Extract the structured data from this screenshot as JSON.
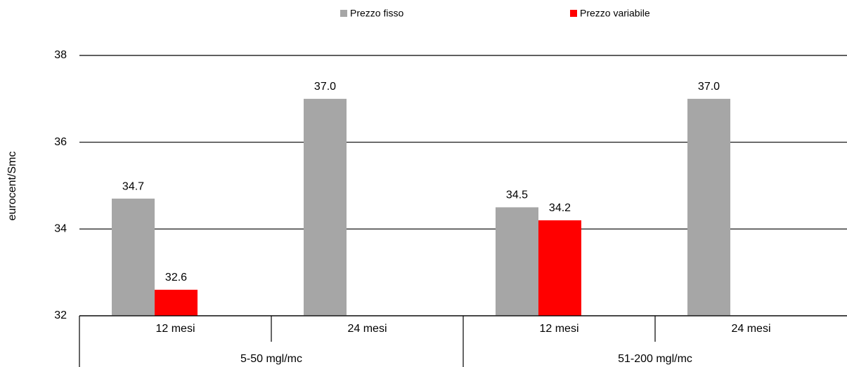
{
  "chart_data": {
    "type": "bar",
    "y_label": "eurocent/Smc",
    "categories": [
      "12 mesi",
      "24 mesi",
      "12 mesi",
      "24 mesi"
    ],
    "groups": [
      "5-50 mgl/mc",
      "51-200 mgl/mc"
    ],
    "series": [
      {
        "name": "Prezzo fisso",
        "color": "#a6a6a6",
        "values": [
          34.7,
          37.0,
          34.5,
          37.0
        ],
        "value_labels": [
          "34.7",
          "37.0",
          "34.5",
          "37.0"
        ]
      },
      {
        "name": "Prezzo variabile",
        "color": "#ff0000",
        "values": [
          32.6,
          null,
          34.2,
          null
        ],
        "value_labels": [
          "32.6",
          null,
          "34.2",
          null
        ]
      }
    ],
    "ylim": [
      32,
      38
    ],
    "yticks": [
      32,
      34,
      36,
      38
    ],
    "grid": true,
    "legend": "top"
  }
}
